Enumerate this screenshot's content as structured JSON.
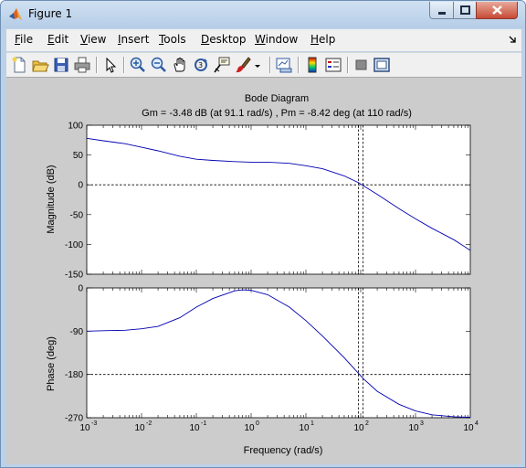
{
  "window": {
    "title": "Figure 1",
    "icon": "matlab-icon",
    "controls": [
      "minimize-icon",
      "maximize-icon",
      "close-icon"
    ]
  },
  "menu": {
    "items": [
      "File",
      "Edit",
      "View",
      "Insert",
      "Tools",
      "Desktop",
      "Window",
      "Help"
    ]
  },
  "toolbar": {
    "buttons": [
      "new-figure-icon",
      "open-file-icon",
      "save-icon",
      "print-icon",
      "edit-plot-icon",
      "zoom-in-icon",
      "zoom-out-icon",
      "pan-icon",
      "rotate-3d-icon",
      "data-cursor-icon",
      "brush-icon",
      "brush-dropdown-icon",
      "link-plot-icon",
      "insert-colorbar-icon",
      "insert-legend-icon",
      "hide-plot-tools-icon",
      "show-plot-tools-icon"
    ]
  },
  "chart_data": [
    {
      "type": "line",
      "title": "Bode Diagram",
      "subtitle": "Gm = -3.48 dB (at 91.1 rad/s) ,  Pm = -8.42 deg (at 110 rad/s)",
      "xlabel": "",
      "ylabel": "Magnitude (dB)",
      "xscale": "log",
      "xlim": [
        0.001,
        10000
      ],
      "ylim": [
        -150,
        100
      ],
      "yticks": [
        "100",
        "50",
        "0",
        "-50",
        "-100",
        "-150"
      ],
      "grid": false,
      "series": [
        {
          "x": [
            0.001,
            0.002,
            0.005,
            0.01,
            0.02,
            0.05,
            0.1,
            0.2,
            0.5,
            1,
            2,
            5,
            10,
            20,
            50,
            91.1,
            200,
            500,
            1000,
            2000,
            5000,
            10000
          ],
          "values": [
            78,
            74,
            69,
            63,
            57,
            48,
            43,
            41,
            39,
            38,
            38,
            36,
            32,
            27,
            15,
            3.5,
            -16,
            -40,
            -57,
            -73,
            -92,
            -110
          ],
          "color": "#0000b0"
        }
      ],
      "reference_lines": {
        "y": 0,
        "x": [
          91.1,
          110
        ]
      }
    },
    {
      "type": "line",
      "xlabel": "Frequency  (rad/s)",
      "ylabel": "Phase (deg)",
      "xscale": "log",
      "xlim": [
        0.001,
        10000
      ],
      "ylim": [
        -270,
        0
      ],
      "xticks": [
        "10",
        "10",
        "10",
        "10",
        "10",
        "10",
        "10",
        "10"
      ],
      "xtick_exponents": [
        "-3",
        "-2",
        "-1",
        "0",
        "1",
        "2",
        "3",
        "4"
      ],
      "yticks": [
        "0",
        "-90",
        "-180",
        "-270"
      ],
      "grid": false,
      "series": [
        {
          "x": [
            0.001,
            0.002,
            0.005,
            0.01,
            0.02,
            0.05,
            0.1,
            0.2,
            0.5,
            0.7,
            1,
            2,
            5,
            10,
            20,
            50,
            110,
            200,
            500,
            1000,
            2000,
            5000,
            10000
          ],
          "values": [
            -90,
            -89,
            -88,
            -85,
            -80,
            -62,
            -40,
            -22,
            -6,
            -4,
            -5,
            -14,
            -40,
            -68,
            -100,
            -145,
            -188,
            -215,
            -242,
            -256,
            -264,
            -268,
            -269
          ],
          "color": "#0000b0"
        }
      ],
      "reference_lines": {
        "y": -180,
        "x": [
          91.1,
          110
        ]
      }
    }
  ]
}
